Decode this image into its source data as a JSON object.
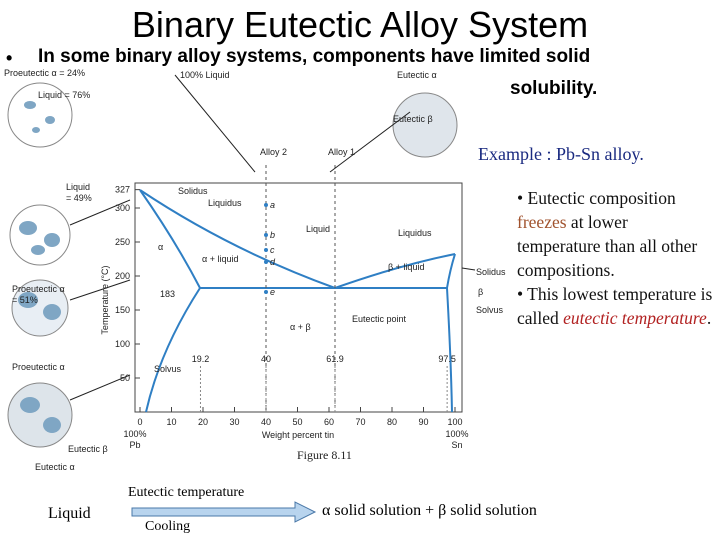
{
  "title": "Binary Eutectic Alloy System",
  "bullet": {
    "marker": "•",
    "lines": [
      "In some binary alloy systems, components have limited solid",
      "solubility."
    ]
  },
  "example": "Example :  Pb-Sn alloy.",
  "notes": [
    [
      "• Eutectic composition ",
      "freezes",
      " at lower temperature than all other compositions."
    ],
    [
      "• This lowest temperature is called ",
      "eutectic temperature",
      "."
    ]
  ],
  "figure": {
    "caption": "Figure 8.11",
    "y_label": "Temperature (°C)",
    "x_label": "Weight percent tin",
    "y_ticks": [
      327,
      300,
      250,
      200,
      150,
      100,
      50
    ],
    "x_ticks": [
      0,
      10,
      20,
      30,
      40,
      50,
      60,
      70,
      80,
      90,
      100
    ],
    "left_end": [
      "100%",
      "Pb"
    ],
    "right_end": [
      "100%",
      "Sn"
    ],
    "compositions": [
      19.2,
      40.0,
      61.9,
      97.5
    ],
    "eutectic_temp": 183,
    "points": [
      "a",
      "b",
      "c",
      "d",
      "e"
    ],
    "labels": {
      "proeutectic_24": "Proeutectic α = 24%",
      "liquid_76": "Liquid = 76%",
      "liquid_100": "100% Liquid",
      "eutectic_alpha_top": "Eutectic α",
      "eutectic_beta_top": "Eutectic β",
      "alloy2": "Alloy 2",
      "alloy1": "Alloy 1",
      "liquid_49": [
        "Liquid",
        "= 49%"
      ],
      "proeutectic_51": [
        "Proeutectic α",
        "= 51%"
      ],
      "proeutectic": "Proeutectic α",
      "eutectic_alpha_bottom": "Eutectic α",
      "eutectic_beta_bottom": "Eutectic β",
      "solidus_left": "Solidus",
      "liquidus_left": "Liquidus",
      "liquid_region": "Liquid",
      "liquidus_right": "Liquidus",
      "alpha": "α",
      "alpha_liquid": "α + liquid",
      "beta_liquid": "β + liquid",
      "solidus_right": "Solidus",
      "beta": "β",
      "solvus_left": "Solvus",
      "alpha_beta": "α + β",
      "eutectic_point": "Eutectic point",
      "solvus_right": "Solvus"
    }
  },
  "cooling": {
    "start": "Liquid",
    "above": "Eutectic temperature",
    "below": "Cooling",
    "end": "α  solid solution  +  β  solid solution"
  }
}
